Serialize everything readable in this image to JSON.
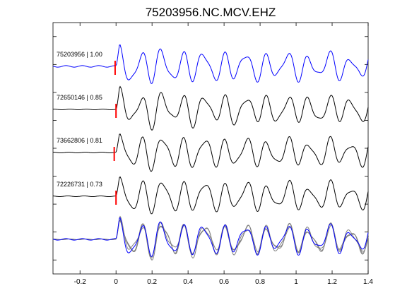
{
  "chart_data": {
    "type": "line",
    "title": "75203956.NC.MCV.EHZ",
    "xlabel": "",
    "ylabel": "",
    "xlim": [
      -0.35,
      1.4
    ],
    "x_ticks": [
      -0.2,
      0,
      0.2,
      0.4,
      0.6,
      0.8,
      1,
      1.2,
      1.4
    ],
    "x_tick_labels": [
      "-0.2",
      "0",
      "0.2",
      "0.4",
      "0.6",
      "0.8",
      "1",
      "1.2",
      "1.4"
    ],
    "y_ticks_count": 9,
    "grid": false,
    "pick_time": 0,
    "colors": {
      "reference": "#0000ff",
      "trace": "#000000",
      "overlay_gray": "#808080",
      "pick": "#ff0000"
    },
    "series": [
      {
        "label": "75203956 | 1.00",
        "id": "75203956",
        "cc": 1.0,
        "color": "#0000ff",
        "pick_offset": -0.005,
        "seed": 1
      },
      {
        "label": "72650146 | 0.85",
        "id": "72650146",
        "cc": 0.85,
        "color": "#000000",
        "pick_offset": 0.0,
        "seed": 2
      },
      {
        "label": "73662806 | 0.81",
        "id": "73662806",
        "cc": 0.81,
        "color": "#000000",
        "pick_offset": -0.01,
        "seed": 3
      },
      {
        "label": "72226731 | 0.73",
        "id": "72226731",
        "cc": 0.73,
        "color": "#000000",
        "pick_offset": 0.0,
        "seed": 4
      }
    ],
    "stack": {
      "description_visible": false,
      "traces": [
        "75203956",
        "72650146",
        "73662806",
        "72226731"
      ]
    }
  }
}
